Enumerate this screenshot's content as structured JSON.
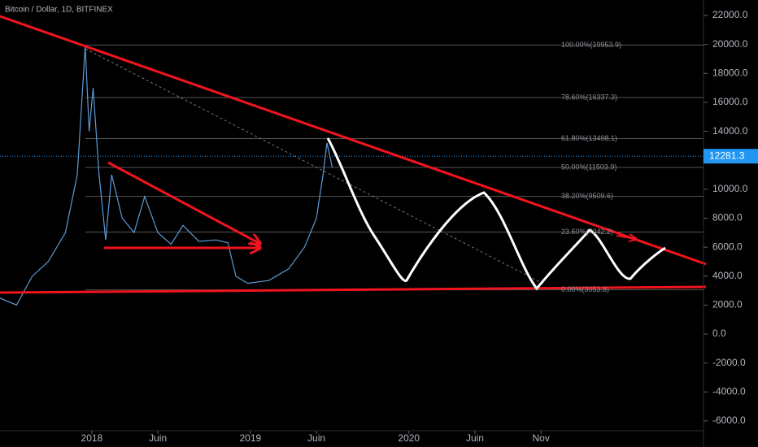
{
  "chart_data": {
    "type": "line",
    "title": "Bitcoin / Dollar, 1D, BITFINEX",
    "x": [
      -7,
      -5.7,
      -4.5,
      -3.3,
      -2.0,
      -1.1,
      -0.5,
      -0.2,
      0.1,
      0.55,
      1.05,
      1.5,
      2.3,
      3.2,
      4.0,
      5.0,
      6.0,
      6.9,
      8.1,
      9.4,
      10.3,
      10.9,
      11.8,
      13.4,
      14.9,
      16.1,
      17.0,
      17.5,
      17.8,
      18.2
    ],
    "series": [
      {
        "color": "#5b9bd5",
        "values": [
          2500,
          2000,
          4000,
          5000,
          7000,
          11000,
          19900,
          14000,
          17000,
          11000,
          6500,
          11000,
          8000,
          7000,
          9500,
          7000,
          6200,
          7500,
          6400,
          6500,
          6300,
          4000,
          3500,
          3700,
          4500,
          6000,
          8000,
          11000,
          13200,
          11500
        ]
      }
    ],
    "xlim": [
      -6.95,
      46.3
    ],
    "xticks": [
      {
        "value": 0,
        "label": "2018"
      },
      {
        "value": 5,
        "label": "Juin"
      },
      {
        "value": 12,
        "label": "2019"
      },
      {
        "value": 17,
        "label": "Juin"
      },
      {
        "value": 24,
        "label": "2020"
      },
      {
        "value": 29,
        "label": "Juin"
      },
      {
        "value": 34,
        "label": "Nov"
      }
    ],
    "ylim": [
      -6680,
      23070
    ],
    "yticks": [
      {
        "value": 22000,
        "label": "22000.0"
      },
      {
        "value": 20000,
        "label": "20000.0"
      },
      {
        "value": 18000,
        "label": "18000.0"
      },
      {
        "value": 16000,
        "label": "16000.0"
      },
      {
        "value": 14000,
        "label": "14000.0"
      },
      {
        "value": 12000,
        "label": "12000.0"
      },
      {
        "value": 10000,
        "label": "10000.0"
      },
      {
        "value": 8000,
        "label": "8000.0"
      },
      {
        "value": 6000,
        "label": "6000.0"
      },
      {
        "value": 4000,
        "label": "4000.0"
      },
      {
        "value": 2000,
        "label": "2000.0"
      },
      {
        "value": 0,
        "label": "0.0"
      },
      {
        "value": -2000,
        "label": "-2000.0"
      },
      {
        "value": -4000,
        "label": "-4000.0"
      },
      {
        "value": -6000,
        "label": "-6000.0"
      }
    ],
    "fib_levels": [
      {
        "value": 19953.9,
        "label": "100.00%(19953.9)"
      },
      {
        "value": 16337.3,
        "label": "78.60%(16337.3)"
      },
      {
        "value": 13498.1,
        "label": "61.80%(13498.1)"
      },
      {
        "value": 11503.9,
        "label": "50.00%(11503.9)"
      },
      {
        "value": 9509.6,
        "label": "38.20%(9509.6)"
      },
      {
        "value": 7042.2,
        "label": "23.60%(7042.2)"
      },
      {
        "value": 3053.8,
        "label": "0.00%(3053.8)"
      }
    ],
    "last_price": 12281.3,
    "grid": false
  }
}
